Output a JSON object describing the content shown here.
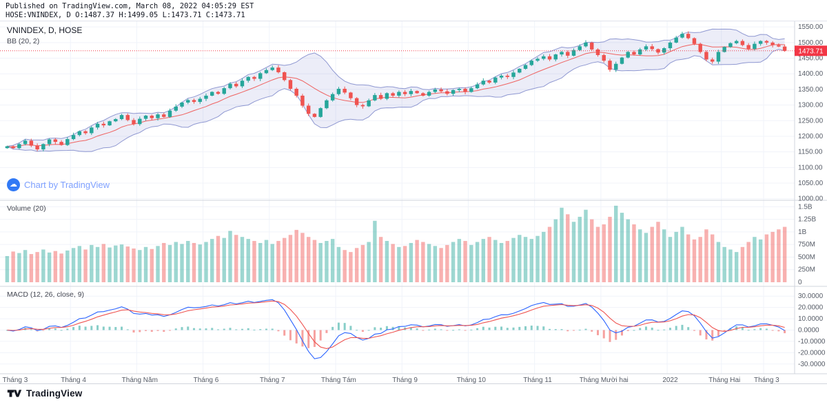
{
  "header": {
    "published_line": "Published on TradingView.com, March 08, 2022 04:05:29 EST",
    "symbol_line": "HOSE:VNINDEX, D O:1487.37 H:1499.05 L:1473.71 C:1473.71"
  },
  "legend": {
    "symbol": "VNINDEX, D, HOSE",
    "bb": "BB (20, 2)",
    "volume": "Volume (20)",
    "macd": "MACD (12, 26, close, 9)"
  },
  "watermark": {
    "text": "Chart by TradingView",
    "icon": "cloud"
  },
  "footer": {
    "brand": "TradingView"
  },
  "colors": {
    "up": "#26a69a",
    "down": "#ef5350",
    "bb_band": "#7b86c9",
    "bb_fill": "#606fc4",
    "bb_basis": "#ef5350",
    "macd_line": "#2962ff",
    "signal_line": "#ef5350",
    "grid": "#f0f3fa",
    "axis_text": "#555b66",
    "separator": "#d1d4dc",
    "last_price": "#f23645"
  },
  "chart_data": {
    "type": "candlestick",
    "title": "VNINDEX, D, HOSE",
    "symbol": "HOSE:VNINDEX",
    "interval": "D",
    "panels": [
      "price+bollinger(20,2)",
      "volume(20)",
      "macd(12,26,close,9)"
    ],
    "legend_position": "top-left",
    "grid": true,
    "last_ohlc": {
      "o": 1487.37,
      "h": 1499.05,
      "l": 1473.71,
      "c": 1473.71
    },
    "last_price": 1473.71,
    "last_price_label": "1473.71",
    "price_axis": {
      "min": 995,
      "max": 1568,
      "tick_min": 1000,
      "tick_max": 1550,
      "tick_step": 50
    },
    "volume_axis_m": {
      "max": 1600,
      "ticks": [
        {
          "v": 1500,
          "label": "1.5B"
        },
        {
          "v": 1250,
          "label": "1.25B"
        },
        {
          "v": 1000,
          "label": "1B"
        },
        {
          "v": 750,
          "label": "750M"
        },
        {
          "v": 500,
          "label": "500M"
        },
        {
          "v": 250,
          "label": "250M"
        },
        {
          "v": 0,
          "label": "0"
        }
      ]
    },
    "macd_axis": {
      "range": 35,
      "ticks": [
        30,
        20,
        10,
        0,
        -10,
        -20,
        -30
      ]
    },
    "months": [
      {
        "label": "Tháng 3",
        "index": 0
      },
      {
        "label": "Tháng 4",
        "index": 11
      },
      {
        "label": "Tháng Năm",
        "index": 22
      },
      {
        "label": "Tháng 6",
        "index": 33
      },
      {
        "label": "Tháng 7",
        "index": 44
      },
      {
        "label": "Tháng Tám",
        "index": 55
      },
      {
        "label": "Tháng 9",
        "index": 66
      },
      {
        "label": "Tháng 10",
        "index": 77
      },
      {
        "label": "Tháng 11",
        "index": 88
      },
      {
        "label": "Tháng Mười hai",
        "index": 99
      },
      {
        "label": "2022",
        "index": 110
      },
      {
        "label": "Tháng Hai",
        "index": 119
      },
      {
        "label": "Tháng 3",
        "index": 126
      }
    ],
    "closes": [
      1168,
      1162,
      1175,
      1186,
      1170,
      1158,
      1175,
      1190,
      1182,
      1172,
      1191,
      1204,
      1216,
      1210,
      1228,
      1240,
      1235,
      1248,
      1255,
      1268,
      1252,
      1239,
      1256,
      1266,
      1258,
      1270,
      1262,
      1282,
      1295,
      1308,
      1316,
      1310,
      1320,
      1330,
      1342,
      1336,
      1354,
      1368,
      1360,
      1378,
      1390,
      1384,
      1402,
      1412,
      1420,
      1405,
      1380,
      1352,
      1330,
      1298,
      1272,
      1262,
      1290,
      1315,
      1335,
      1352,
      1340,
      1322,
      1300,
      1296,
      1315,
      1332,
      1320,
      1338,
      1330,
      1342,
      1335,
      1345,
      1338,
      1330,
      1342,
      1350,
      1344,
      1336,
      1348,
      1352,
      1342,
      1354,
      1366,
      1378,
      1372,
      1388,
      1394,
      1390,
      1404,
      1416,
      1428,
      1442,
      1448,
      1456,
      1446,
      1462,
      1470,
      1458,
      1476,
      1488,
      1500,
      1478,
      1460,
      1442,
      1413,
      1432,
      1452,
      1470,
      1462,
      1478,
      1488,
      1479,
      1468,
      1482,
      1500,
      1516,
      1528,
      1514,
      1496,
      1470,
      1446,
      1439,
      1470,
      1486,
      1498,
      1505,
      1492,
      1480,
      1496,
      1505,
      1500,
      1492,
      1487.37,
      1473.71
    ],
    "volumes_m": [
      520,
      610,
      580,
      640,
      560,
      600,
      650,
      590,
      620,
      570,
      630,
      680,
      720,
      650,
      740,
      700,
      760,
      690,
      730,
      750,
      710,
      670,
      640,
      700,
      660,
      720,
      780,
      740,
      800,
      760,
      820,
      780,
      750,
      800,
      860,
      920,
      880,
      1020,
      940,
      900,
      860,
      820,
      780,
      840,
      760,
      820,
      880,
      940,
      1040,
      980,
      900,
      840,
      780,
      820,
      860,
      700,
      640,
      600,
      680,
      740,
      800,
      1220,
      900,
      820,
      760,
      700,
      720,
      780,
      840,
      800,
      760,
      720,
      680,
      740,
      800,
      860,
      820,
      740,
      800,
      860,
      900,
      840,
      780,
      820,
      880,
      940,
      900,
      860,
      920,
      1000,
      1100,
      1250,
      1480,
      1350,
      1200,
      1300,
      1440,
      1250,
      1100,
      1150,
      1300,
      1520,
      1380,
      1250,
      1150,
      1050,
      980,
      1100,
      1200,
      1050,
      900,
      1000,
      1100,
      950,
      850,
      900,
      1050,
      950,
      800,
      700,
      650,
      600,
      700,
      800,
      900,
      850,
      950,
      1000,
      1050,
      1100
    ]
  }
}
